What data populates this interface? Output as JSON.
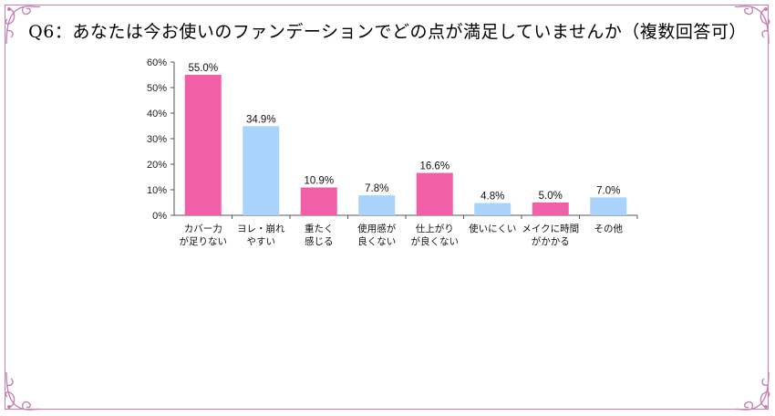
{
  "title": "Q6：あなたは今お使いのファンデーションでどの点が満足していませんか（複数回答可）",
  "colors": {
    "pink": "#f05fa8",
    "blue": "#a9d3fb",
    "border": "#c77fb3"
  },
  "icons": {
    "corner": "flourish-corner-icon"
  },
  "chart_data": {
    "type": "bar",
    "categories": [
      [
        "カバー力",
        "が足りない"
      ],
      [
        "ヨレ・崩れ",
        "やすい"
      ],
      [
        "重たく",
        "感じる"
      ],
      [
        "使用感が",
        "良くない"
      ],
      [
        "仕上がり",
        "が良くない"
      ],
      [
        "使いにくい"
      ],
      [
        "メイクに時間",
        "がかかる"
      ],
      [
        "その他"
      ]
    ],
    "values": [
      55.0,
      34.9,
      10.9,
      7.8,
      16.6,
      4.8,
      5.0,
      7.0
    ],
    "value_labels": [
      "55.0%",
      "34.9%",
      "10.9%",
      "7.8%",
      "16.6%",
      "4.8%",
      "5.0%",
      "7.0%"
    ],
    "bar_colors": [
      "#f05fa8",
      "#a9d3fb",
      "#f05fa8",
      "#a9d3fb",
      "#f05fa8",
      "#a9d3fb",
      "#f05fa8",
      "#a9d3fb"
    ],
    "ylim": [
      0,
      60
    ],
    "yticks": [
      "0%",
      "10%",
      "20%",
      "30%",
      "40%",
      "50%",
      "60%"
    ],
    "grid": false,
    "xlabel": "",
    "ylabel": ""
  }
}
